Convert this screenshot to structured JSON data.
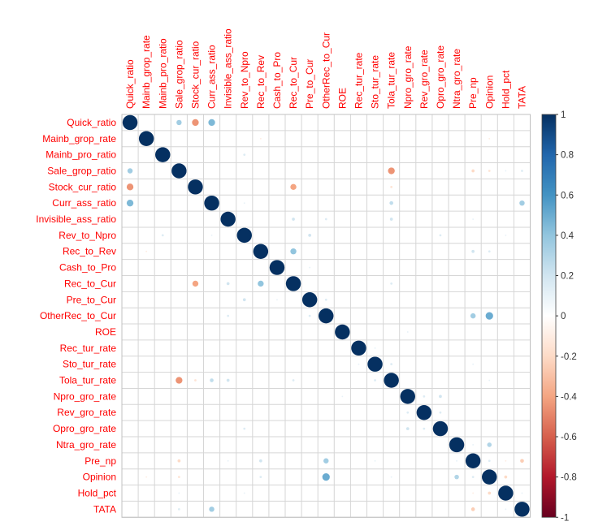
{
  "figure": {
    "description": "Correlation matrix dot plot (corrplot style) of financial ratio variables"
  },
  "chart_data": {
    "type": "heatmap",
    "subtype": "correlation-circle-matrix",
    "title": "",
    "xlabel": "",
    "ylabel": "",
    "grid": true,
    "label_color": "#FF0000",
    "grid_color": "#d6d6d6",
    "grid_border_color": "#c0c0c0",
    "diagonal_value": 1,
    "variables": [
      "Quick_ratio",
      "Mainb_grop_rate",
      "Mainb_pro_ratio",
      "Sale_grop_ratio",
      "Stock_cur_ratio",
      "Curr_ass_ratio",
      "Invisible_ass_ratio",
      "Rev_to_Npro",
      "Rec_to_Rev",
      "Cash_to_Pro",
      "Rec_to_Cur",
      "Pre_to_Cur",
      "OtherRec_to_Cur",
      "ROE",
      "Rec_tur_rate",
      "Sto_tur_rate",
      "Tola_tur_rate",
      "Npro_gro_rate",
      "Rev_gro_rate",
      "Opro_gro_rate",
      "Ntra_gro_rate",
      "Pre_np",
      "Opinion",
      "Hold_pct",
      "TATA"
    ],
    "pairs": [
      {
        "r": "Quick_ratio",
        "c": "Sale_grop_ratio",
        "v": 0.35
      },
      {
        "r": "Quick_ratio",
        "c": "Stock_cur_ratio",
        "v": -0.45
      },
      {
        "r": "Quick_ratio",
        "c": "Curr_ass_ratio",
        "v": 0.45
      },
      {
        "r": "Mainb_grop_rate",
        "c": "Rec_to_Rev",
        "v": -0.1
      },
      {
        "r": "Mainb_grop_rate",
        "c": "Opinion",
        "v": -0.1
      },
      {
        "r": "Mainb_pro_ratio",
        "c": "Rev_to_Npro",
        "v": 0.15
      },
      {
        "r": "Sale_grop_ratio",
        "c": "Tola_tur_rate",
        "v": -0.45
      },
      {
        "r": "Sale_grop_ratio",
        "c": "Pre_np",
        "v": -0.2
      },
      {
        "r": "Sale_grop_ratio",
        "c": "Opinion",
        "v": -0.15
      },
      {
        "r": "Sale_grop_ratio",
        "c": "Hold_pct",
        "v": 0.1
      },
      {
        "r": "Sale_grop_ratio",
        "c": "TATA",
        "v": 0.15
      },
      {
        "r": "Stock_cur_ratio",
        "c": "Rec_to_Cur",
        "v": -0.4
      },
      {
        "r": "Stock_cur_ratio",
        "c": "Tola_tur_rate",
        "v": -0.15
      },
      {
        "r": "Curr_ass_ratio",
        "c": "Rev_to_Npro",
        "v": 0.1
      },
      {
        "r": "Curr_ass_ratio",
        "c": "Tola_tur_rate",
        "v": 0.25
      },
      {
        "r": "Curr_ass_ratio",
        "c": "TATA",
        "v": 0.35
      },
      {
        "r": "Invisible_ass_ratio",
        "c": "Rec_to_Cur",
        "v": 0.2
      },
      {
        "r": "Invisible_ass_ratio",
        "c": "OtherRec_to_Cur",
        "v": 0.15
      },
      {
        "r": "Invisible_ass_ratio",
        "c": "Tola_tur_rate",
        "v": 0.2
      },
      {
        "r": "Invisible_ass_ratio",
        "c": "Pre_np",
        "v": 0.1
      },
      {
        "r": "Rev_to_Npro",
        "c": "Pre_to_Cur",
        "v": 0.2
      },
      {
        "r": "Rev_to_Npro",
        "c": "Opro_gro_rate",
        "v": 0.15
      },
      {
        "r": "Rev_to_Npro",
        "c": "Hold_pct",
        "v": 0.1
      },
      {
        "r": "Rec_to_Rev",
        "c": "Rec_to_Cur",
        "v": 0.4
      },
      {
        "r": "Rec_to_Rev",
        "c": "Pre_np",
        "v": 0.2
      },
      {
        "r": "Rec_to_Rev",
        "c": "Opinion",
        "v": 0.15
      },
      {
        "r": "Cash_to_Pro",
        "c": "Pre_to_Cur",
        "v": 0.1
      },
      {
        "r": "Rec_to_Cur",
        "c": "Tola_tur_rate",
        "v": 0.15
      },
      {
        "r": "Pre_to_Cur",
        "c": "OtherRec_to_Cur",
        "v": 0.15
      },
      {
        "r": "OtherRec_to_Cur",
        "c": "Pre_np",
        "v": 0.35
      },
      {
        "r": "OtherRec_to_Cur",
        "c": "Opinion",
        "v": 0.5
      },
      {
        "r": "ROE",
        "c": "Npro_gro_rate",
        "v": 0.1
      },
      {
        "r": "Rec_tur_rate",
        "c": "Sto_tur_rate",
        "v": 0.1
      },
      {
        "r": "Sto_tur_rate",
        "c": "Tola_tur_rate",
        "v": 0.15
      },
      {
        "r": "Sto_tur_rate",
        "c": "Pre_np",
        "v": 0.1
      },
      {
        "r": "Tola_tur_rate",
        "c": "Opinion",
        "v": 0.1
      },
      {
        "r": "Npro_gro_rate",
        "c": "Rev_gro_rate",
        "v": 0.15
      },
      {
        "r": "Npro_gro_rate",
        "c": "Opro_gro_rate",
        "v": 0.2
      },
      {
        "r": "Rev_gro_rate",
        "c": "Opro_gro_rate",
        "v": 0.15
      },
      {
        "r": "Ntra_gro_rate",
        "c": "Opinion",
        "v": 0.3
      },
      {
        "r": "Ntra_gro_rate",
        "c": "Pre_np",
        "v": 0.1
      },
      {
        "r": "Pre_np",
        "c": "Opinion",
        "v": 0.15
      },
      {
        "r": "Pre_np",
        "c": "Hold_pct",
        "v": -0.1
      },
      {
        "r": "Pre_np",
        "c": "TATA",
        "v": -0.25
      },
      {
        "r": "Opinion",
        "c": "Hold_pct",
        "v": -0.2
      },
      {
        "r": "Hold_pct",
        "c": "TATA",
        "v": 0.1
      }
    ],
    "colorbar": {
      "position": "right",
      "min": -1,
      "max": 1,
      "ticks": [
        "1",
        "0.8",
        "0.6",
        "0.4",
        "0.2",
        "0",
        "-0.2",
        "-0.4",
        "-0.6",
        "-0.8",
        "-1"
      ],
      "tick_color": "#333333",
      "palette": [
        "#67001F",
        "#B2182B",
        "#D6604D",
        "#F4A582",
        "#FDDBC7",
        "#FFFFFF",
        "#D1E5F0",
        "#92C5DE",
        "#4393C3",
        "#2166AC",
        "#053061"
      ]
    }
  }
}
